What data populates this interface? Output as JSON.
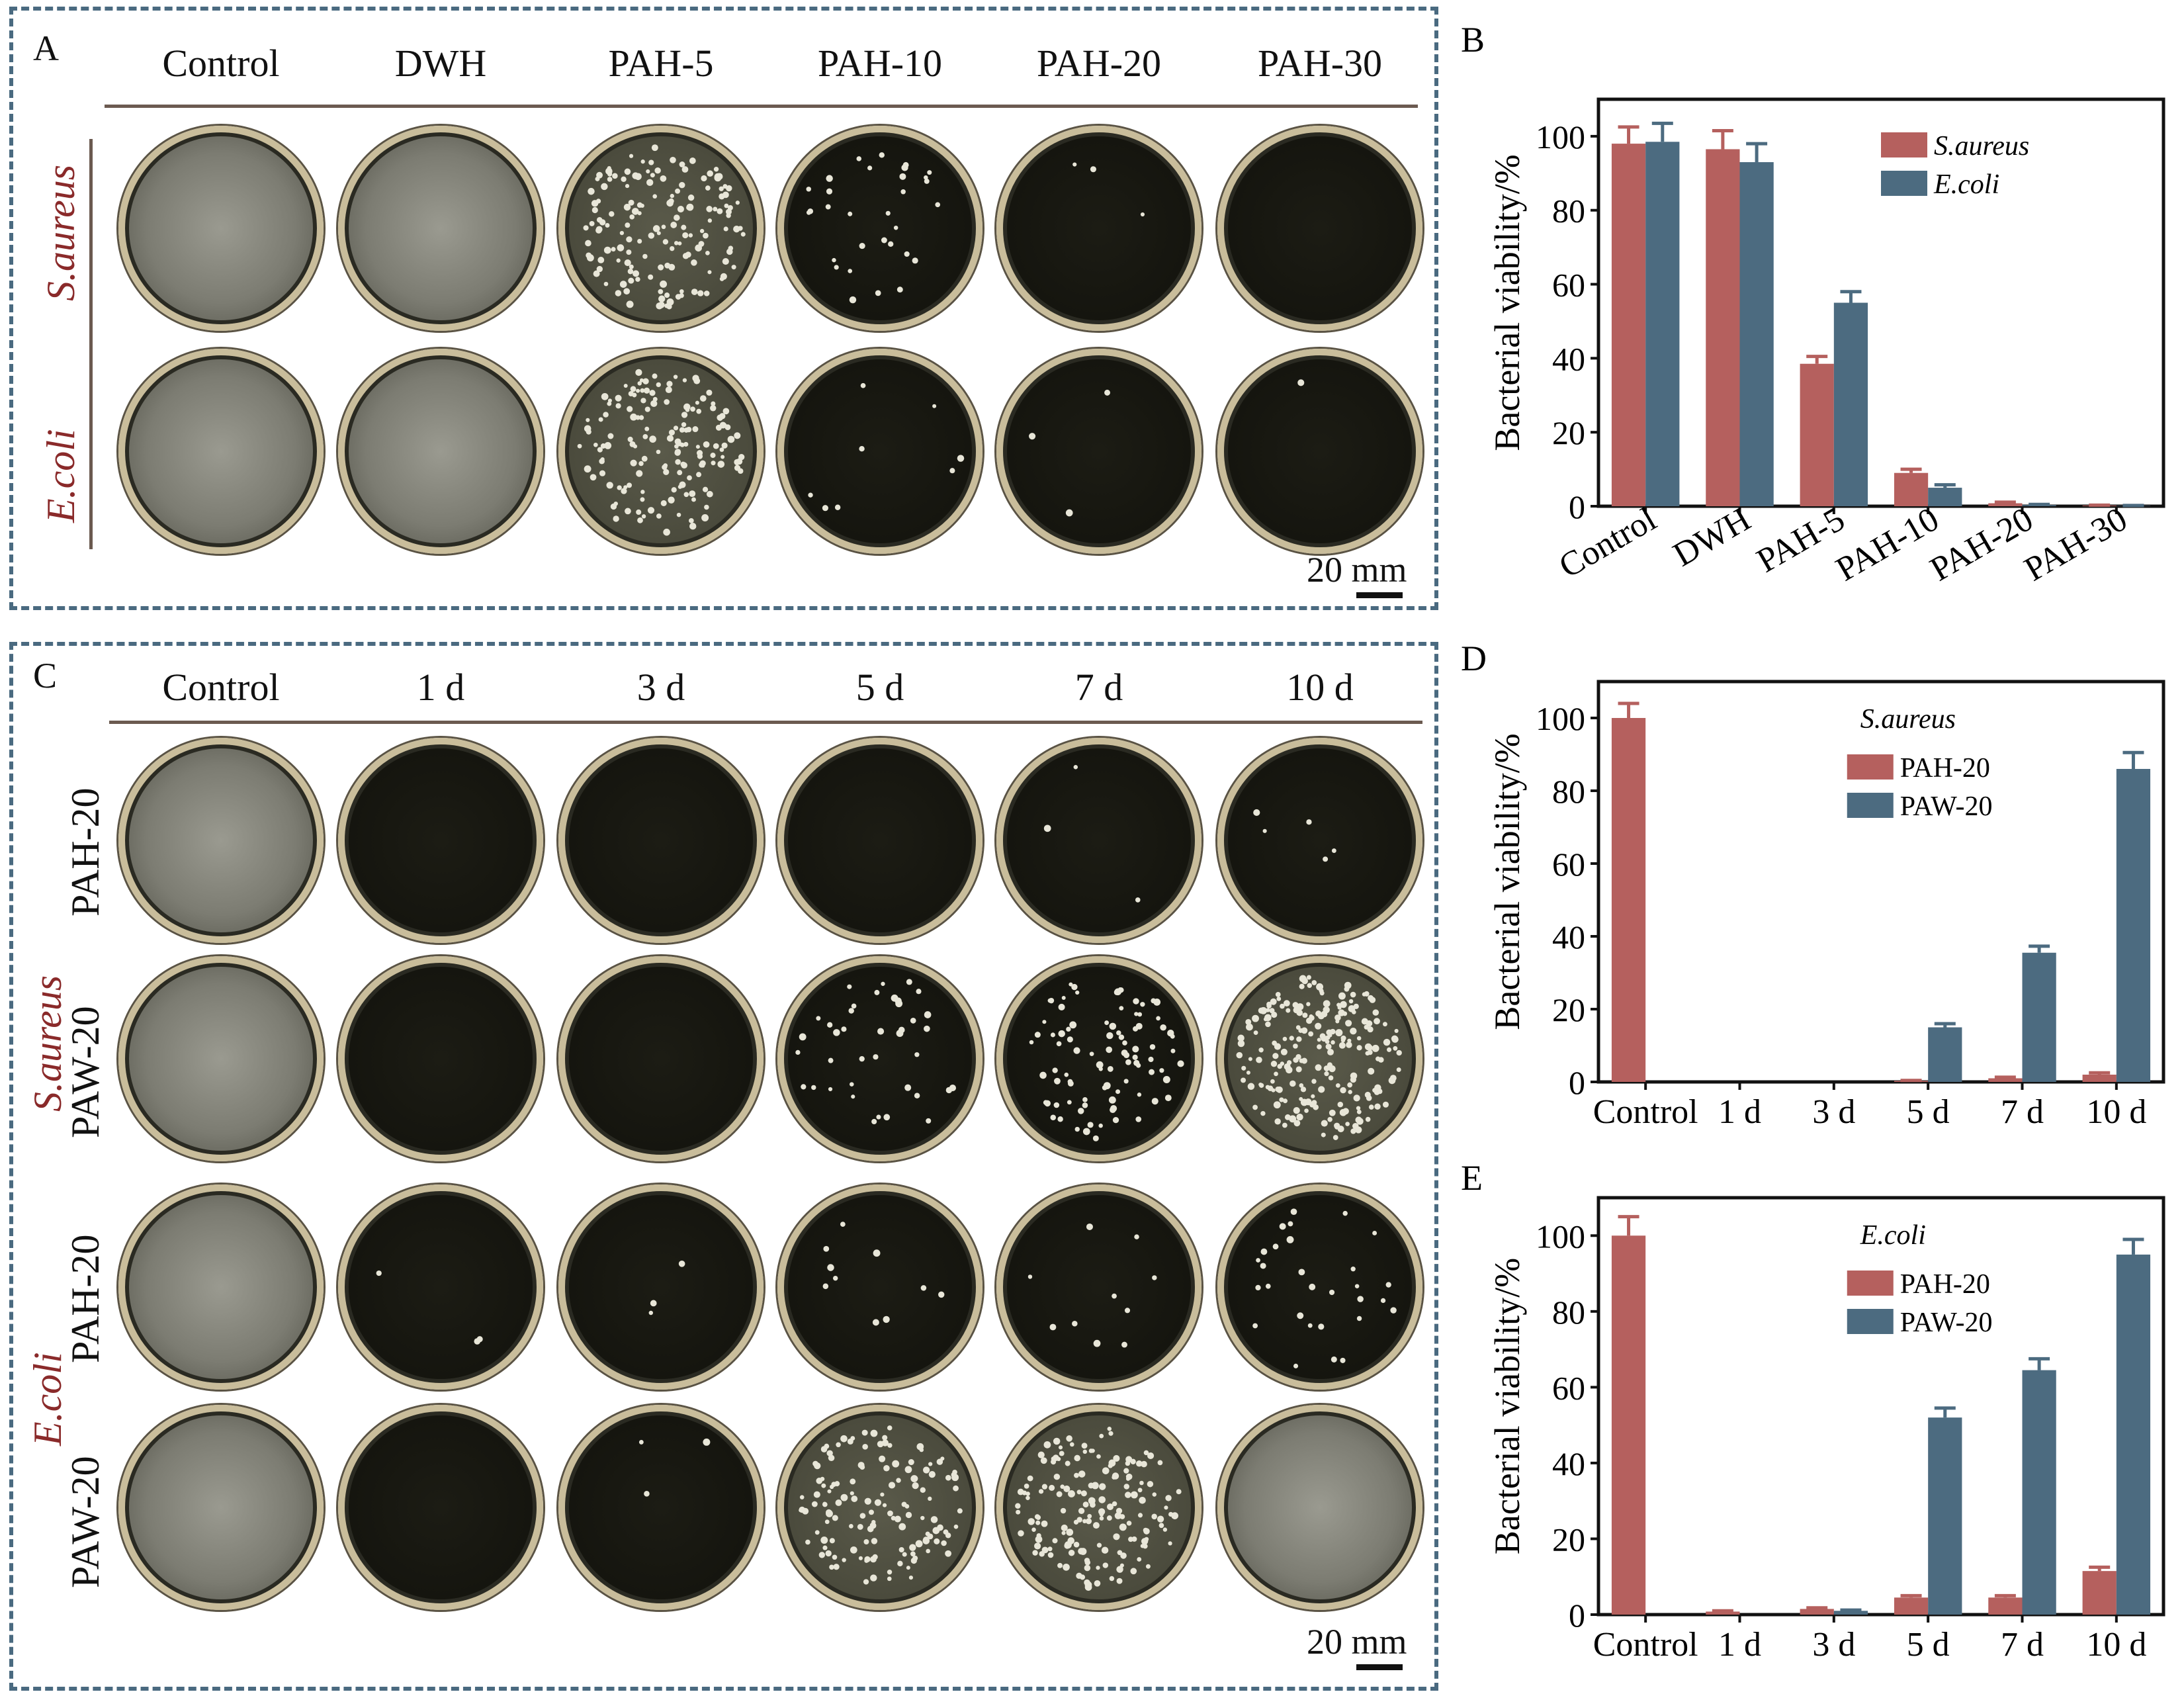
{
  "panel_A": {
    "letter": "A",
    "columns": [
      "Control",
      "DWH",
      "PAH-5",
      "PAH-10",
      "PAH-20",
      "PAH-30"
    ],
    "rows": [
      "S.aureus",
      "E.coli"
    ],
    "scale": "20 mm",
    "dish_growth": [
      [
        1.0,
        0.95,
        0.6,
        0.12,
        0.01,
        0.0
      ],
      [
        1.0,
        0.95,
        0.6,
        0.03,
        0.01,
        0.005
      ]
    ]
  },
  "panel_C": {
    "letter": "C",
    "columns": [
      "Control",
      "1 d",
      "3 d",
      "5 d",
      "7 d",
      "10 d"
    ],
    "species": [
      "S.aureus",
      "E.coli"
    ],
    "rows": [
      "PAH-20",
      "PAW-20",
      "PAH-20",
      "PAW-20"
    ],
    "scale": "20 mm",
    "dish_growth": [
      [
        1.0,
        0.0,
        0.0,
        0.0,
        0.01,
        0.02
      ],
      [
        1.0,
        0.0,
        0.0,
        0.15,
        0.35,
        0.85
      ],
      [
        1.0,
        0.01,
        0.01,
        0.04,
        0.04,
        0.11
      ],
      [
        1.0,
        0.0,
        0.01,
        0.52,
        0.64,
        0.95
      ]
    ]
  },
  "colors": {
    "red": "#b5605e",
    "blue": "#4c6b80",
    "frame": "#4a6a80",
    "species_text": "#8a2a2a"
  },
  "chart_data": [
    {
      "letter": "B",
      "type": "bar",
      "categories": [
        "Control",
        "DWH",
        "PAH-5",
        "PAH-10",
        "PAH-20",
        "PAH-30"
      ],
      "series": [
        {
          "name": "S.aureus",
          "color": "#b5605e",
          "values": [
            98,
            96.5,
            38.5,
            9,
            0.8,
            0.2
          ],
          "err": [
            4.5,
            5,
            2,
            1,
            0.3,
            0.1
          ]
        },
        {
          "name": "E.coli",
          "color": "#4c6b80",
          "values": [
            98.5,
            93,
            55,
            5,
            0.3,
            0.1
          ],
          "err": [
            5,
            5,
            3,
            0.8,
            0.2,
            0.1
          ]
        }
      ],
      "ylabel": "Bacterial viability/%",
      "ylim": [
        0,
        110
      ],
      "yticks": [
        0,
        20,
        40,
        60,
        80,
        100
      ],
      "legend_title": "",
      "legend": "top-right",
      "rotated_xlabels": true
    },
    {
      "letter": "D",
      "type": "bar",
      "categories": [
        "Control",
        "1 d",
        "3 d",
        "5 d",
        "7 d",
        "10 d"
      ],
      "series": [
        {
          "name": "PAH-20",
          "color": "#b5605e",
          "values": [
            100,
            0,
            0,
            0.3,
            1,
            2
          ],
          "err": [
            4,
            0,
            0,
            0.1,
            0.3,
            0.5
          ]
        },
        {
          "name": "PAW-20",
          "color": "#4c6b80",
          "values": [
            0,
            0,
            0,
            15,
            35.5,
            86
          ],
          "err": [
            0,
            0,
            0,
            1,
            1.8,
            4.5
          ]
        }
      ],
      "ylabel": "Bacterial viability/%",
      "ylim": [
        0,
        110
      ],
      "yticks": [
        0,
        20,
        40,
        60,
        80,
        100
      ],
      "legend_title": "S.aureus",
      "legend": "top-center",
      "rotated_xlabels": false
    },
    {
      "letter": "E",
      "type": "bar",
      "categories": [
        "Control",
        "1 d",
        "3 d",
        "5 d",
        "7 d",
        "10 d"
      ],
      "series": [
        {
          "name": "PAH-20",
          "color": "#b5605e",
          "values": [
            100,
            0.8,
            1.5,
            4.5,
            4.5,
            11.5
          ],
          "err": [
            5,
            0.2,
            0.3,
            0.5,
            0.5,
            1
          ]
        },
        {
          "name": "PAW-20",
          "color": "#4c6b80",
          "values": [
            0,
            0,
            1,
            52,
            64.5,
            95
          ],
          "err": [
            0,
            0,
            0.2,
            2.5,
            3,
            4
          ]
        }
      ],
      "ylabel": "Bacterial viability/%",
      "ylim": [
        0,
        110
      ],
      "yticks": [
        0,
        20,
        40,
        60,
        80,
        100
      ],
      "legend_title": "E.coli",
      "legend": "top-center",
      "rotated_xlabels": false
    }
  ]
}
